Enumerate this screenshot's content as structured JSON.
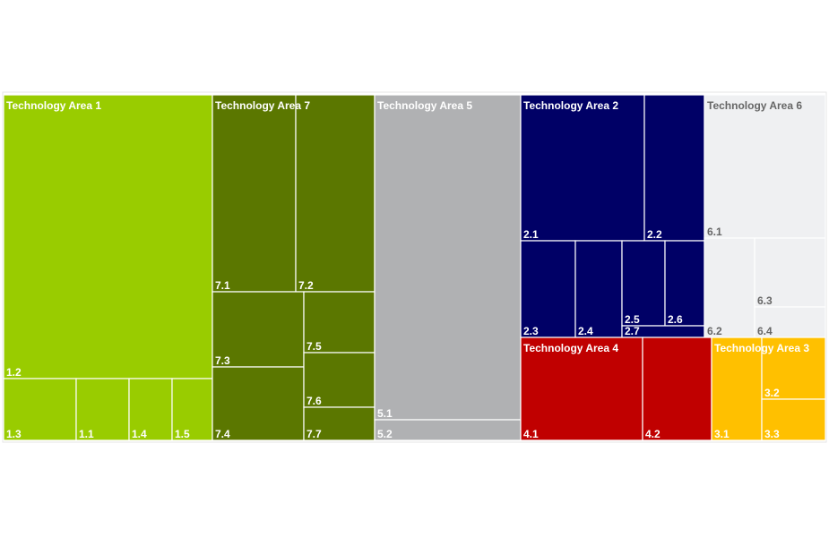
{
  "chart_data": {
    "type": "treemap",
    "title": "",
    "groups": [
      {
        "name": "Technology Area 1",
        "color": "#99cc00",
        "text_color": "#ffffff",
        "items": [
          {
            "label": "1.2",
            "value": 29.1
          },
          {
            "label": "1.3",
            "value": 2.5
          },
          {
            "label": "1.1",
            "value": 1.8
          },
          {
            "label": "1.4",
            "value": 1.5
          },
          {
            "label": "1.5",
            "value": 1.4
          }
        ]
      },
      {
        "name": "Technology Area 7",
        "color": "#5b7700",
        "text_color": "#ffffff",
        "items": [
          {
            "label": "7.1",
            "value": 6.3
          },
          {
            "label": "7.2",
            "value": 6.3
          },
          {
            "label": "7.3",
            "value": 2.7
          },
          {
            "label": "7.4",
            "value": 2.7
          },
          {
            "label": "7.5",
            "value": 1.4
          },
          {
            "label": "7.6",
            "value": 1.3
          },
          {
            "label": "7.7",
            "value": 0.8
          }
        ]
      },
      {
        "name": "Technology Area 5",
        "color": "#b0b1b3",
        "text_color": "#ffffff",
        "items": [
          {
            "label": "5.1",
            "value": 18.9
          },
          {
            "label": "5.2",
            "value": 1.1
          }
        ]
      },
      {
        "name": "Technology Area 2",
        "color": "#000066",
        "text_color": "#ffffff",
        "items": [
          {
            "label": "2.1",
            "value": 7.1
          },
          {
            "label": "2.2",
            "value": 3.4
          },
          {
            "label": "2.3",
            "value": 1.8
          },
          {
            "label": "2.4",
            "value": 1.6
          },
          {
            "label": "2.5",
            "value": 1.4
          },
          {
            "label": "2.6",
            "value": 1.3
          },
          {
            "label": "2.7",
            "value": 0.3
          }
        ]
      },
      {
        "name": "Technology Area 6",
        "color": "#eff0f2",
        "text_color": "#666666",
        "items": [
          {
            "label": "6.1",
            "value": 4.9
          },
          {
            "label": "6.2",
            "value": 2.0
          },
          {
            "label": "6.3",
            "value": 1.4
          },
          {
            "label": "6.4",
            "value": 1.0
          }
        ]
      },
      {
        "name": "Technology Area 4",
        "color": "#c00000",
        "text_color": "#ffffff",
        "items": [
          {
            "label": "4.1",
            "value": 4.9
          },
          {
            "label": "4.2",
            "value": 2.9
          }
        ]
      },
      {
        "name": "Technology Area 3",
        "color": "#ffc000",
        "text_color": "#ffffff",
        "items": [
          {
            "label": "3.1",
            "value": 1.9
          },
          {
            "label": "3.2",
            "value": 1.5
          },
          {
            "label": "3.3",
            "value": 1.5
          }
        ]
      }
    ]
  }
}
